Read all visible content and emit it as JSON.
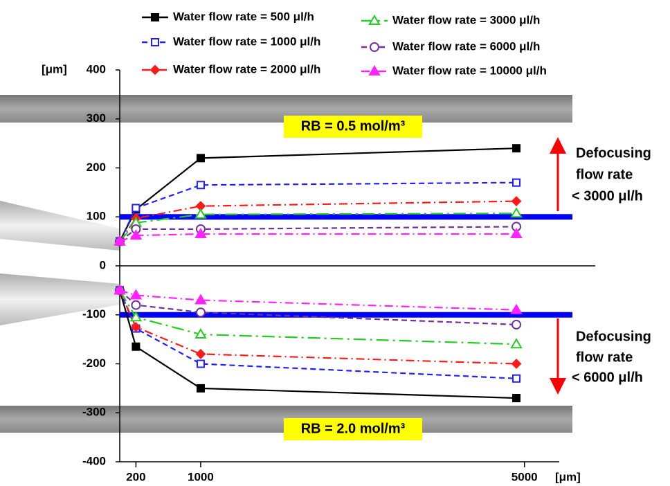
{
  "chart_data": {
    "type": "line",
    "y_unit": "[μm]",
    "x_unit": "[μm]",
    "xlim": [
      0,
      5430
    ],
    "xticks": [
      200,
      1000,
      5000
    ],
    "ylim": [
      -400,
      400
    ],
    "yticks": [
      -400,
      -300,
      -200,
      -100,
      0,
      100,
      200,
      300,
      400
    ],
    "x": [
      0,
      200,
      1000,
      4900
    ],
    "series": [
      {
        "name": "Water flow rate = 500 μl/h",
        "color": "#000000",
        "marker": "square",
        "filled": true,
        "dash": "solid",
        "values": [
          50,
          115,
          220,
          240
        ],
        "values_lower": [
          -50,
          -165,
          -250,
          -270
        ]
      },
      {
        "name": "Water flow rate = 1000 μl/h",
        "color": "#1f1fff",
        "marker": "square",
        "filled": false,
        "dash": "dashed",
        "values": [
          50,
          118,
          165,
          170
        ],
        "values_lower": [
          -50,
          -128,
          -200,
          -230
        ]
      },
      {
        "name": "Water flow rate = 2000 μl/h",
        "color": "#ff1a1a",
        "marker": "diamond",
        "filled": true,
        "dash": "dashdot",
        "values": [
          50,
          97,
          122,
          132
        ],
        "values_lower": [
          -50,
          -125,
          -180,
          -200
        ]
      },
      {
        "name": "Water flow rate = 3000 μl/h",
        "color": "#22cc22",
        "marker": "triangle",
        "filled": false,
        "dash": "longdashdot",
        "values": [
          50,
          88,
          105,
          107
        ],
        "values_lower": [
          -50,
          -105,
          -140,
          -160
        ]
      },
      {
        "name": "Water flow rate = 6000 μl/h",
        "color": "#7030a0",
        "marker": "circle",
        "filled": false,
        "dash": "dashed",
        "values": [
          50,
          75,
          75,
          80
        ],
        "values_lower": [
          -50,
          -80,
          -95,
          -120
        ]
      },
      {
        "name": "Water flow rate = 10000 μl/h",
        "color": "#ff22ff",
        "marker": "triangle",
        "filled": true,
        "dash": "dashdot",
        "values": [
          50,
          62,
          65,
          65
        ],
        "values_lower": [
          -50,
          -60,
          -70,
          -90
        ]
      }
    ],
    "threshold_lines": [
      100,
      -100
    ],
    "threshold_color": "#0000ff",
    "annotations": [
      {
        "text": "RB = 0.5 mol/m³"
      },
      {
        "text": "RB = 2.0 mol/m³"
      },
      {
        "lines": [
          "Defocusing",
          "flow rate",
          "< 3000 μl/h"
        ]
      },
      {
        "lines": [
          "Defocusing",
          "flow rate",
          "< 6000 μl/h"
        ]
      }
    ]
  }
}
